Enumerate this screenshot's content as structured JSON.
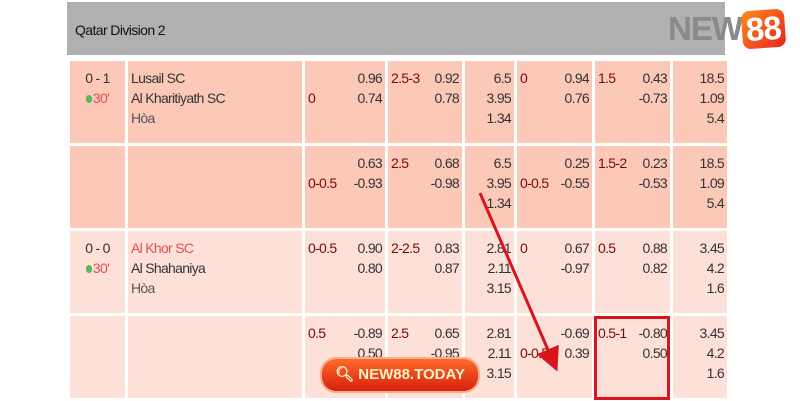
{
  "league": "Qatar Division 2",
  "logo": {
    "text_gray": "NEW",
    "text_badge": "88"
  },
  "matches": [
    {
      "score": "0 - 1",
      "minute": "30'",
      "home": "Lusail SC",
      "away": "Al Kharitiyath SC",
      "draw": "Hòa",
      "home_red": false,
      "rows": [
        {
          "hdp_line": "0",
          "hdp_odds": [
            "0.96",
            "0.74"
          ],
          "ou_line": "2.5-3",
          "ou_odds": [
            "0.92",
            "0.78"
          ],
          "x12": [
            "6.5",
            "3.95",
            "1.34"
          ],
          "h1_line": "0",
          "h1_odds": [
            "0.94",
            "0.76"
          ],
          "h1ou_line": "1.5",
          "h1ou_odds": [
            "0.43",
            "-0.73"
          ],
          "h1x12": [
            "18.5",
            "1.09",
            "5.4"
          ]
        },
        {
          "hdp_line": "0-0.5",
          "hdp_odds": [
            "0.63",
            "-0.93"
          ],
          "ou_line": "2.5",
          "ou_odds": [
            "0.68",
            "-0.98"
          ],
          "x12": [
            "6.5",
            "3.95",
            "1.34"
          ],
          "h1_line": "0-0.5",
          "h1_odds": [
            "0.25",
            "-0.55"
          ],
          "h1ou_line": "1.5-2",
          "h1ou_odds": [
            "0.23",
            "-0.53"
          ],
          "h1x12": [
            "18.5",
            "1.09",
            "5.4"
          ]
        }
      ]
    },
    {
      "score": "0 - 0",
      "minute": "30'",
      "home": "Al Khor SC",
      "away": "Al Shahaniya",
      "draw": "Hòa",
      "home_red": true,
      "rows": [
        {
          "hdp_line": "0-0.5",
          "hdp_odds": [
            "0.90",
            "0.80"
          ],
          "ou_line": "2-2.5",
          "ou_odds": [
            "0.83",
            "0.87"
          ],
          "x12": [
            "2.81",
            "2.11",
            "3.15"
          ],
          "h1_line": "0",
          "h1_odds": [
            "0.67",
            "-0.97"
          ],
          "h1ou_line": "0.5",
          "h1ou_odds": [
            "0.88",
            "0.82"
          ],
          "h1x12": [
            "3.45",
            "4.2",
            "1.6"
          ]
        },
        {
          "hdp_line": "0.5",
          "hdp_odds": [
            "-0.89",
            "0.50"
          ],
          "ou_line": "2.5",
          "ou_odds": [
            "0.65",
            "-0.95"
          ],
          "x12": [
            "2.81",
            "2.11",
            "3.15"
          ],
          "h1_line": "0-0.5",
          "h1_odds": [
            "-0.69",
            "0.39"
          ],
          "h1ou_line": "0.5-1",
          "h1ou_odds": [
            "-0.80",
            "0.50"
          ],
          "h1x12": [
            "3.45",
            "4.2",
            "1.6"
          ]
        }
      ]
    }
  ],
  "badge": {
    "icon": "search-icon",
    "text": "NEW88.TODAY"
  },
  "colors": {
    "header": "#b0b0b0",
    "row_live": "#fcc9b8",
    "row_light": "#fde0d8",
    "line": "#7a0a0a",
    "highlight": "#d9141b"
  }
}
